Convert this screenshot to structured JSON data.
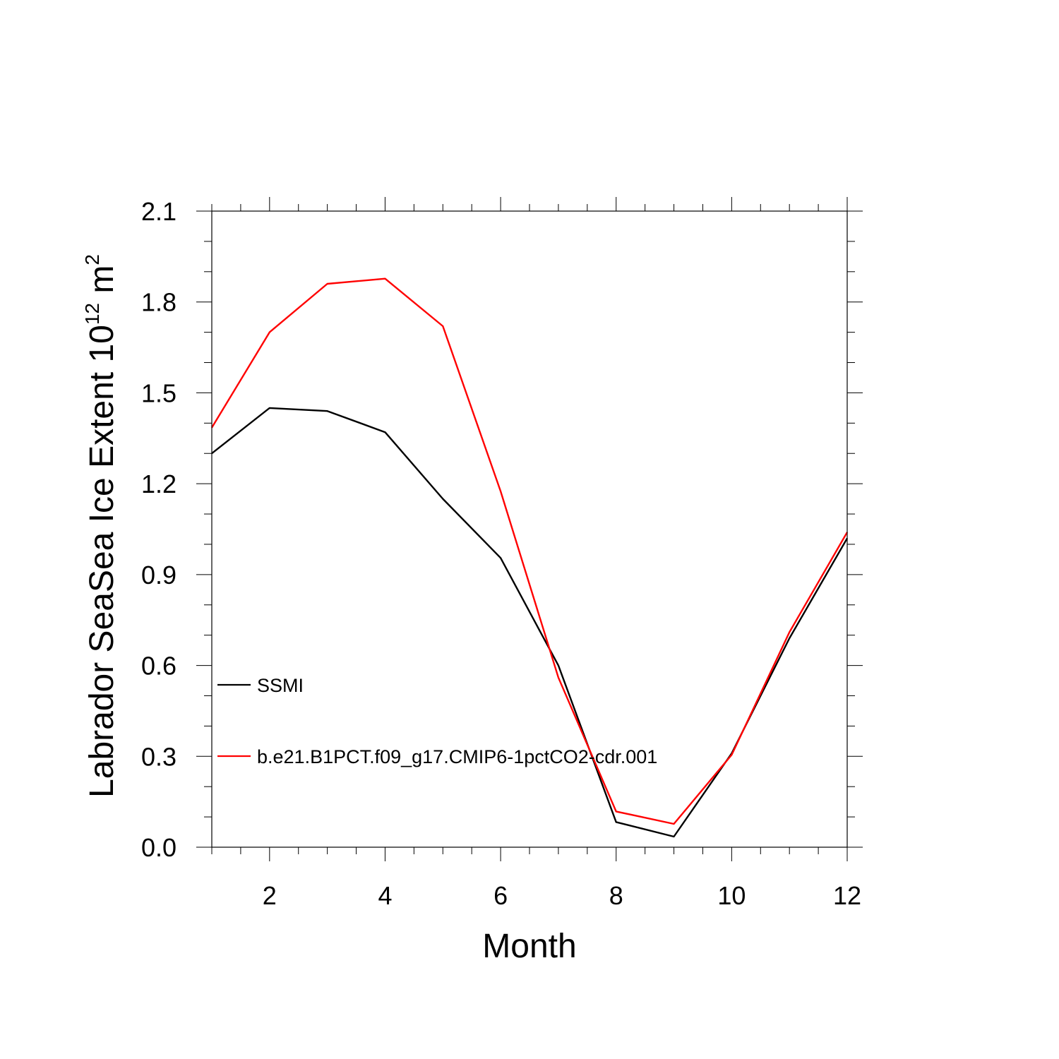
{
  "chart_data": {
    "type": "line",
    "title": "",
    "xlabel": "Month",
    "ylabel_main": "Labrador SeaSea Ice Extent 10",
    "ylabel_exp": "12",
    "ylabel_unit": " m",
    "ylabel_unit_exp": "2",
    "xlim": [
      1,
      12
    ],
    "ylim": [
      0.0,
      2.1
    ],
    "xticks": [
      2,
      4,
      6,
      8,
      10,
      12
    ],
    "xtick_labels": [
      "2",
      "4",
      "6",
      "8",
      "10",
      "12"
    ],
    "yticks": [
      0.0,
      0.3,
      0.6,
      0.9,
      1.2,
      1.5,
      1.8,
      2.1
    ],
    "ytick_labels": [
      "0.0",
      "0.3",
      "0.6",
      "0.9",
      "1.2",
      "1.5",
      "1.8",
      "2.1"
    ],
    "grid": false,
    "legend_position": "lower-left inside",
    "x": [
      1,
      2,
      3,
      4,
      5,
      6,
      7,
      8,
      9,
      10,
      11,
      12
    ],
    "series": [
      {
        "name": "SSMI",
        "color": "#000000",
        "values": [
          1.3,
          1.45,
          1.44,
          1.37,
          1.15,
          0.955,
          0.6,
          0.083,
          0.035,
          0.31,
          0.69,
          1.02
        ]
      },
      {
        "name": "b.e21.B1PCT.f09_g17.CMIP6-1pctCO2-cdr.001",
        "color": "#ff0000",
        "values": [
          1.385,
          1.7,
          1.86,
          1.877,
          1.72,
          1.175,
          0.56,
          0.118,
          0.077,
          0.305,
          0.71,
          1.04
        ]
      }
    ]
  }
}
